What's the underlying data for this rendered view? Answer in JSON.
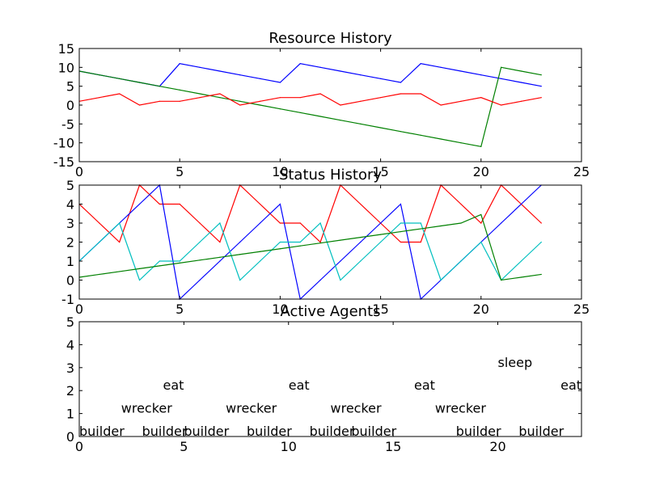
{
  "chart_data": [
    {
      "type": "line",
      "title": "Resource History",
      "xlim": [
        0,
        25
      ],
      "ylim": [
        -15,
        15
      ],
      "xticks": [
        0,
        5,
        10,
        15,
        20,
        25
      ],
      "yticks": [
        -15,
        -10,
        -5,
        0,
        5,
        10,
        15
      ],
      "grid": false,
      "series": [
        {
          "color": "#0000ff",
          "x": [
            0,
            1,
            2,
            3,
            4,
            5,
            6,
            7,
            8,
            9,
            10,
            11,
            12,
            13,
            14,
            15,
            16,
            17,
            18,
            19,
            20,
            21,
            22,
            23
          ],
          "values": [
            9,
            8,
            7,
            6,
            5,
            11,
            10,
            9,
            8,
            7,
            6,
            11,
            10,
            9,
            8,
            7,
            6,
            11,
            10,
            9,
            8,
            7,
            6,
            5
          ]
        },
        {
          "color": "#008000",
          "x": [
            0,
            1,
            2,
            3,
            4,
            5,
            6,
            7,
            8,
            9,
            10,
            11,
            12,
            13,
            14,
            15,
            16,
            17,
            18,
            19,
            20,
            21,
            22,
            23
          ],
          "values": [
            9,
            8,
            7,
            6,
            5,
            4,
            3,
            2,
            1,
            0,
            -1,
            -2,
            -3,
            -4,
            -5,
            -6,
            -7,
            -8,
            -9,
            -10,
            -11,
            10,
            9,
            8
          ]
        },
        {
          "color": "#ff0000",
          "x": [
            0,
            1,
            2,
            3,
            4,
            5,
            6,
            7,
            8,
            9,
            10,
            11,
            12,
            13,
            14,
            15,
            16,
            17,
            18,
            19,
            20,
            21,
            22,
            23
          ],
          "values": [
            1,
            2,
            3,
            0,
            1,
            1,
            2,
            3,
            0,
            1,
            2,
            2,
            3,
            0,
            1,
            2,
            3,
            3,
            0,
            1,
            2,
            0,
            1,
            2
          ]
        }
      ]
    },
    {
      "type": "line",
      "title": "Status History",
      "xlim": [
        0,
        25
      ],
      "ylim": [
        -1,
        5
      ],
      "xticks": [
        0,
        5,
        10,
        15,
        20,
        25
      ],
      "yticks": [
        -1,
        0,
        1,
        2,
        3,
        4,
        5
      ],
      "grid": false,
      "series": [
        {
          "color": "#ff0000",
          "x": [
            0,
            1,
            2,
            3,
            4,
            5,
            6,
            7,
            8,
            9,
            10,
            11,
            12,
            13,
            14,
            15,
            16,
            17,
            18,
            19,
            20,
            21,
            22,
            23
          ],
          "values": [
            4,
            3,
            2,
            5,
            4,
            4,
            3,
            2,
            5,
            4,
            3,
            3,
            2,
            5,
            4,
            3,
            2,
            2,
            5,
            4,
            3,
            5,
            4,
            3
          ]
        },
        {
          "color": "#0000ff",
          "x": [
            0,
            1,
            2,
            3,
            4,
            5,
            6,
            7,
            8,
            9,
            10,
            11,
            12,
            13,
            14,
            15,
            16,
            17,
            18,
            19,
            20,
            21,
            22,
            23
          ],
          "values": [
            1,
            2,
            3,
            4,
            5,
            -1,
            0,
            1,
            2,
            3,
            4,
            -1,
            0,
            1,
            2,
            3,
            4,
            -1,
            0,
            1,
            2,
            3,
            4,
            5
          ]
        },
        {
          "color": "#00bfbf",
          "x": [
            0,
            1,
            2,
            3,
            4,
            5,
            6,
            7,
            8,
            9,
            10,
            11,
            12,
            13,
            14,
            15,
            16,
            17,
            18,
            19,
            20,
            21,
            22,
            23
          ],
          "values": [
            1,
            2,
            3,
            0,
            1,
            1,
            2,
            3,
            0,
            1,
            2,
            2,
            3,
            0,
            1,
            2,
            3,
            3,
            0,
            1,
            2,
            0,
            1,
            2
          ]
        },
        {
          "color": "#008000",
          "x": [
            0,
            1,
            2,
            3,
            4,
            5,
            6,
            7,
            8,
            9,
            10,
            11,
            12,
            13,
            14,
            15,
            16,
            17,
            18,
            19,
            20,
            21,
            22,
            23
          ],
          "values": [
            0.15,
            0.3,
            0.45,
            0.6,
            0.75,
            0.9,
            1.05,
            1.2,
            1.35,
            1.5,
            1.65,
            1.8,
            1.95,
            2.1,
            2.25,
            2.4,
            2.55,
            2.7,
            2.85,
            3.0,
            3.45,
            0.0,
            0.15,
            0.3
          ]
        }
      ]
    },
    {
      "type": "scatter",
      "title": "Active Agents",
      "xlim": [
        0,
        24
      ],
      "ylim": [
        0,
        5
      ],
      "xticks": [
        0,
        5,
        10,
        15,
        20
      ],
      "yticks": [
        0,
        1,
        2,
        3,
        4,
        5
      ],
      "grid": false,
      "annotations": [
        {
          "x": 0,
          "y": 0,
          "text": "builder"
        },
        {
          "x": 3,
          "y": 0,
          "text": "builder"
        },
        {
          "x": 5,
          "y": 0,
          "text": "builder"
        },
        {
          "x": 8,
          "y": 0,
          "text": "builder"
        },
        {
          "x": 11,
          "y": 0,
          "text": "builder"
        },
        {
          "x": 13,
          "y": 0,
          "text": "builder"
        },
        {
          "x": 18,
          "y": 0,
          "text": "builder"
        },
        {
          "x": 21,
          "y": 0,
          "text": "builder"
        },
        {
          "x": 2,
          "y": 1,
          "text": "wrecker"
        },
        {
          "x": 7,
          "y": 1,
          "text": "wrecker"
        },
        {
          "x": 12,
          "y": 1,
          "text": "wrecker"
        },
        {
          "x": 17,
          "y": 1,
          "text": "wrecker"
        },
        {
          "x": 4,
          "y": 2,
          "text": "eat"
        },
        {
          "x": 10,
          "y": 2,
          "text": "eat"
        },
        {
          "x": 16,
          "y": 2,
          "text": "eat"
        },
        {
          "x": 23,
          "y": 2,
          "text": "eat"
        },
        {
          "x": 20,
          "y": 3,
          "text": "sleep"
        }
      ]
    }
  ]
}
